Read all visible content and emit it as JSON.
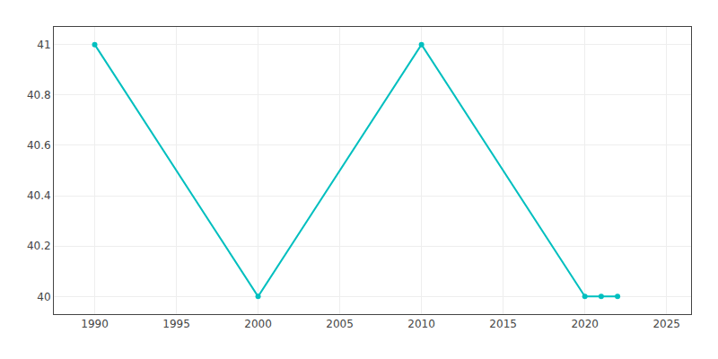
{
  "chart_data": {
    "type": "line",
    "x": [
      1990,
      2000,
      2010,
      2020,
      2021,
      2022
    ],
    "values": [
      41,
      40,
      41,
      40,
      40,
      40
    ],
    "color": "#00BFBF",
    "marker": "circle",
    "xlim": [
      1987.5,
      2026.5
    ],
    "ylim": [
      39.93,
      41.07
    ],
    "xticks": [
      1990,
      1995,
      2000,
      2005,
      2010,
      2015,
      2020,
      2025
    ],
    "yticks": [
      40,
      40.2,
      40.4,
      40.6,
      40.8,
      41
    ],
    "grid": true
  }
}
